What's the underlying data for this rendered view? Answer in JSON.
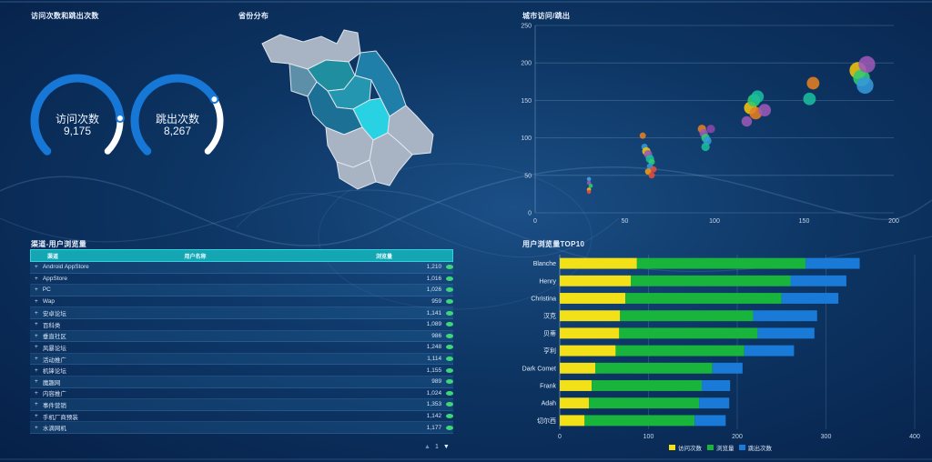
{
  "titles": {
    "gauges": "访问次数和跳出次数",
    "map": "省份分布",
    "scatter": "城市访问/跳出",
    "table": "渠道-用户浏览量",
    "hbar": "用户浏览量TOP10"
  },
  "gauges": [
    {
      "label": "访问次数",
      "value": "9,175",
      "fraction": 0.82
    },
    {
      "label": "跳出次数",
      "value": "8,267",
      "fraction": 0.72
    }
  ],
  "colors": {
    "accent": "#1677d6",
    "track": "#ffffff",
    "yellow": "#f2e018",
    "green": "#18b43c",
    "blue": "#1a7ad8"
  },
  "table": {
    "headers": [
      "渠道",
      "用户名称",
      "浏览量"
    ],
    "rows": [
      {
        "name": "Android AppStore",
        "value": "1,210"
      },
      {
        "name": "AppStore",
        "value": "1,016"
      },
      {
        "name": "PC",
        "value": "1,026"
      },
      {
        "name": "Wap",
        "value": "959"
      },
      {
        "name": "安卓论坛",
        "value": "1,141"
      },
      {
        "name": "百科类",
        "value": "1,089"
      },
      {
        "name": "垂直社区",
        "value": "986"
      },
      {
        "name": "风暴论坛",
        "value": "1,248"
      },
      {
        "name": "活动推广",
        "value": "1,114"
      },
      {
        "name": "机锋论坛",
        "value": "1,155"
      },
      {
        "name": "魔趣网",
        "value": "989"
      },
      {
        "name": "内容推广",
        "value": "1,024"
      },
      {
        "name": "事件营销",
        "value": "1,353"
      },
      {
        "name": "手机厂商预装",
        "value": "1,142"
      },
      {
        "name": "水滴网机",
        "value": "1,177"
      }
    ],
    "page": "1"
  },
  "chart_data": [
    {
      "type": "scatter",
      "title": "城市访问/跳出",
      "xlim": [
        0,
        200
      ],
      "ylim": [
        0,
        250
      ],
      "xticks": [
        0,
        50,
        100,
        150,
        200
      ],
      "yticks": [
        0,
        50,
        100,
        150,
        200,
        250
      ],
      "grid": true,
      "points": [
        {
          "x": 30,
          "y": 45,
          "size": 2,
          "color": "#4aa3df"
        },
        {
          "x": 30,
          "y": 40,
          "size": 2,
          "color": "#9b59b6"
        },
        {
          "x": 31,
          "y": 36,
          "size": 2,
          "color": "#2ecc71"
        },
        {
          "x": 30,
          "y": 31,
          "size": 2,
          "color": "#f1c40f"
        },
        {
          "x": 30,
          "y": 28,
          "size": 2,
          "color": "#e74c3c"
        },
        {
          "x": 60,
          "y": 103,
          "size": 3,
          "color": "#e67e22"
        },
        {
          "x": 61,
          "y": 88,
          "size": 3,
          "color": "#3498db"
        },
        {
          "x": 62,
          "y": 82,
          "size": 4,
          "color": "#f1c40f"
        },
        {
          "x": 63,
          "y": 78,
          "size": 4,
          "color": "#9b59b6"
        },
        {
          "x": 64,
          "y": 72,
          "size": 4,
          "color": "#1abc9c"
        },
        {
          "x": 65,
          "y": 68,
          "size": 3,
          "color": "#2ecc71"
        },
        {
          "x": 64,
          "y": 62,
          "size": 3,
          "color": "#3498db"
        },
        {
          "x": 66,
          "y": 58,
          "size": 3,
          "color": "#e74c3c"
        },
        {
          "x": 63,
          "y": 55,
          "size": 3,
          "color": "#f39c12"
        },
        {
          "x": 65,
          "y": 50,
          "size": 3,
          "color": "#e74c3c"
        },
        {
          "x": 93,
          "y": 112,
          "size": 4,
          "color": "#e67e22"
        },
        {
          "x": 94,
          "y": 106,
          "size": 4,
          "color": "#9b59b6"
        },
        {
          "x": 95,
          "y": 100,
          "size": 4,
          "color": "#2ecc71"
        },
        {
          "x": 96,
          "y": 96,
          "size": 4,
          "color": "#3498db"
        },
        {
          "x": 98,
          "y": 112,
          "size": 4,
          "color": "#8e44ad"
        },
        {
          "x": 95,
          "y": 88,
          "size": 4,
          "color": "#1abc9c"
        },
        {
          "x": 118,
          "y": 122,
          "size": 5,
          "color": "#9b59b6"
        },
        {
          "x": 120,
          "y": 140,
          "size": 6,
          "color": "#f1c40f"
        },
        {
          "x": 122,
          "y": 150,
          "size": 6,
          "color": "#2ecc71"
        },
        {
          "x": 123,
          "y": 133,
          "size": 6,
          "color": "#e67e22"
        },
        {
          "x": 124,
          "y": 155,
          "size": 6,
          "color": "#1abc9c"
        },
        {
          "x": 128,
          "y": 137,
          "size": 6,
          "color": "#9b59b6"
        },
        {
          "x": 153,
          "y": 152,
          "size": 6,
          "color": "#1abc9c"
        },
        {
          "x": 155,
          "y": 173,
          "size": 6,
          "color": "#e67e22"
        },
        {
          "x": 180,
          "y": 190,
          "size": 8,
          "color": "#f1c40f"
        },
        {
          "x": 182,
          "y": 180,
          "size": 8,
          "color": "#2ecc71"
        },
        {
          "x": 184,
          "y": 170,
          "size": 8,
          "color": "#3498db"
        },
        {
          "x": 185,
          "y": 198,
          "size": 8,
          "color": "#9b59b6"
        }
      ]
    },
    {
      "type": "bar",
      "orientation": "horizontal",
      "stacked": true,
      "title": "用户浏览量TOP10",
      "categories": [
        "Blanche",
        "Henry",
        "Christina",
        "汉克",
        "贝蒂",
        "亨利",
        "Dark Comet",
        "Frank",
        "Adah",
        "切尔西"
      ],
      "xlim": [
        0,
        400
      ],
      "xticks": [
        0,
        100,
        200,
        300,
        400
      ],
      "series": [
        {
          "name": "访问次数",
          "color": "#f2e018",
          "values": [
            87,
            80,
            74,
            68,
            67,
            63,
            40,
            36,
            33,
            28
          ]
        },
        {
          "name": "浏览量",
          "color": "#18b43c",
          "values": [
            190,
            180,
            176,
            150,
            156,
            145,
            132,
            124,
            124,
            124
          ]
        },
        {
          "name": "跳出次数",
          "color": "#1a7ad8",
          "values": [
            61,
            63,
            64,
            72,
            64,
            56,
            34,
            32,
            34,
            35
          ]
        }
      ]
    }
  ]
}
